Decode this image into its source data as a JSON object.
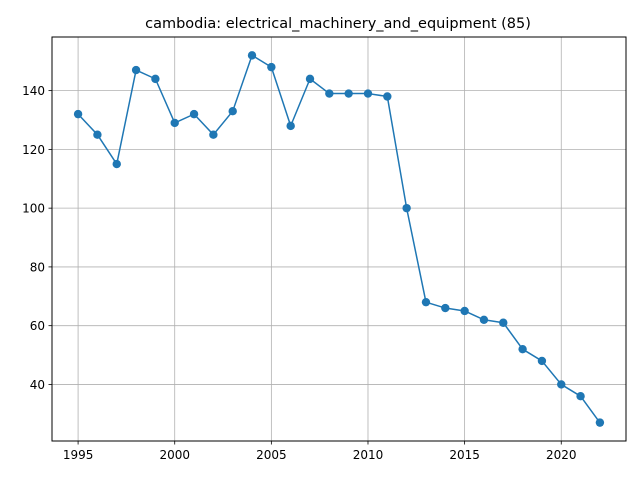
{
  "chart_data": {
    "type": "line",
    "title": "cambodia: electrical_machinery_and_equipment (85)",
    "xlabel": "",
    "ylabel": "",
    "x": [
      1995,
      1996,
      1997,
      1998,
      1999,
      2000,
      2001,
      2002,
      2003,
      2004,
      2005,
      2006,
      2007,
      2008,
      2009,
      2010,
      2011,
      2012,
      2013,
      2014,
      2015,
      2016,
      2017,
      2018,
      2019,
      2020,
      2021,
      2022
    ],
    "series": [
      {
        "values": [
          132,
          125,
          115,
          147,
          144,
          129,
          132,
          125,
          133,
          152,
          148,
          128,
          144,
          139,
          139,
          139,
          138,
          100,
          68,
          66,
          65,
          62,
          61,
          52,
          48,
          40,
          36,
          27
        ]
      }
    ],
    "xticks": [
      "1995",
      "2000",
      "2005",
      "2010",
      "2015",
      "2020"
    ],
    "yticks": [
      "40",
      "60",
      "80",
      "100",
      "120",
      "140"
    ],
    "xlim": [
      1993.65,
      2023.35
    ],
    "ylim": [
      20.75,
      158.25
    ],
    "grid": true,
    "color": "#1f77b4",
    "marker": "circle"
  }
}
